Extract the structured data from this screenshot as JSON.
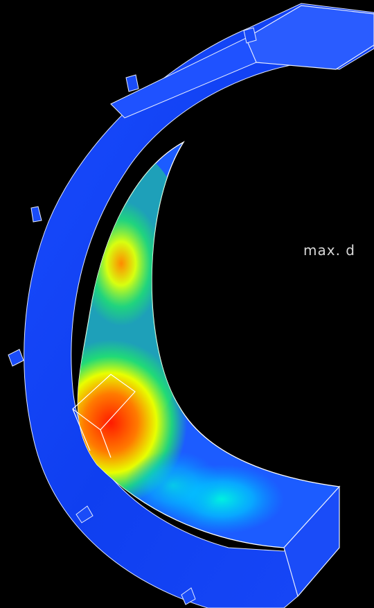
{
  "annotation": "max. d"
}
